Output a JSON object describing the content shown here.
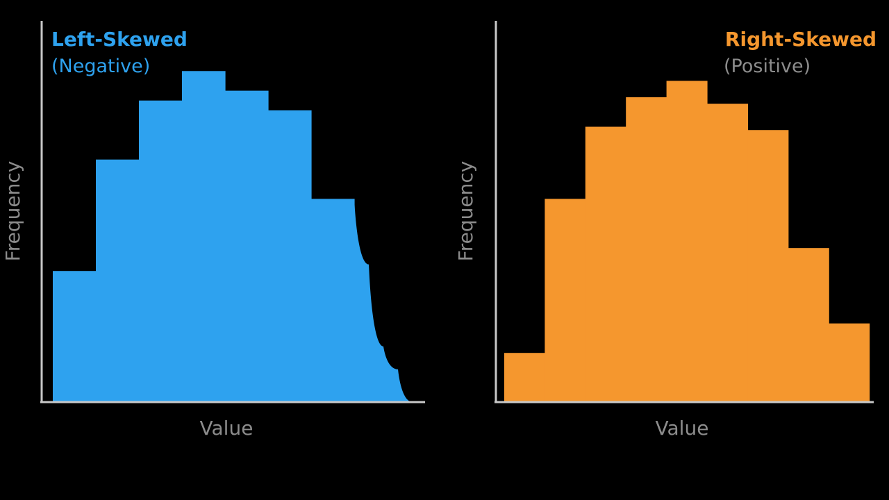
{
  "chart_data": [
    {
      "type": "bar",
      "title": "Left-Skewed",
      "subtitle": "(Negative)",
      "xlabel": "Value",
      "ylabel": "Frequency",
      "color": "#2ea2ef",
      "title_color": "#2ea2ef",
      "subtitle_color": "#2ea2ef",
      "ylim": [
        0,
        100
      ],
      "values": [
        40,
        74,
        92,
        101,
        95,
        89,
        62
      ],
      "tail_values": [
        42,
        17,
        10,
        0
      ],
      "grid": false
    },
    {
      "type": "bar",
      "title": "Right-Skewed",
      "subtitle": "(Positive)",
      "xlabel": "Value",
      "ylabel": "Frequency",
      "color": "#f5972e",
      "title_color": "#f5972e",
      "subtitle_color": "#8c8c8c",
      "ylim": [
        0,
        100
      ],
      "values": [
        15,
        62,
        84,
        93,
        98,
        91,
        83,
        47,
        24
      ],
      "grid": false
    }
  ]
}
